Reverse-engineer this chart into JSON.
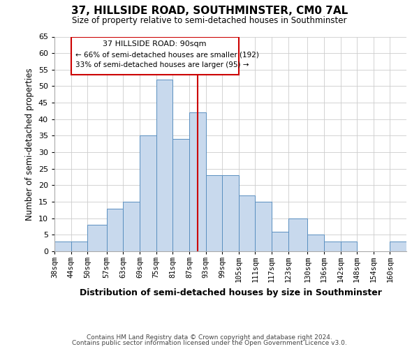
{
  "title": "37, HILLSIDE ROAD, SOUTHMINSTER, CM0 7AL",
  "subtitle": "Size of property relative to semi-detached houses in Southminster",
  "xlabel": "Distribution of semi-detached houses by size in Southminster",
  "ylabel": "Number of semi-detached properties",
  "footnote1": "Contains HM Land Registry data © Crown copyright and database right 2024.",
  "footnote2": "Contains public sector information licensed under the Open Government Licence v3.0.",
  "bin_labels": [
    "38sqm",
    "44sqm",
    "50sqm",
    "57sqm",
    "63sqm",
    "69sqm",
    "75sqm",
    "81sqm",
    "87sqm",
    "93sqm",
    "99sqm",
    "105sqm",
    "111sqm",
    "117sqm",
    "123sqm",
    "130sqm",
    "136sqm",
    "142sqm",
    "148sqm",
    "154sqm",
    "160sqm"
  ],
  "bar_heights": [
    3,
    3,
    8,
    13,
    15,
    35,
    52,
    34,
    42,
    23,
    23,
    17,
    15,
    6,
    10,
    5,
    3,
    3,
    0,
    0,
    3
  ],
  "bar_color": "#c8d9ed",
  "bar_edge_color": "#5a8fc0",
  "property_line_x": 90,
  "property_line_color": "#cc0000",
  "annotation_title": "37 HILLSIDE ROAD: 90sqm",
  "annotation_line1": "← 66% of semi-detached houses are smaller (192)",
  "annotation_line2": "33% of semi-detached houses are larger (95) →",
  "annotation_box_color": "#ffffff",
  "annotation_box_edge": "#cc0000",
  "ylim": [
    0,
    65
  ],
  "yticks": [
    0,
    5,
    10,
    15,
    20,
    25,
    30,
    35,
    40,
    45,
    50,
    55,
    60,
    65
  ],
  "bin_edges": [
    38,
    44,
    50,
    57,
    63,
    69,
    75,
    81,
    87,
    93,
    99,
    105,
    111,
    117,
    123,
    130,
    136,
    142,
    148,
    154,
    160,
    166
  ],
  "xlim": [
    38,
    166
  ]
}
